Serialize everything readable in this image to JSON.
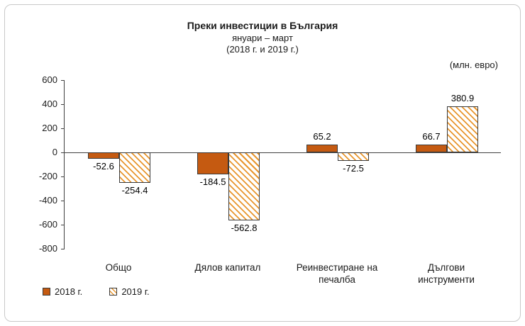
{
  "chart": {
    "title": "Преки  инвестиции в България",
    "subtitle1": "януари – март",
    "subtitle2": "(2018 г. и 2019 г.)",
    "unit": "(млн. евро)"
  },
  "chart_data": {
    "type": "bar",
    "title": "Преки инвестиции в България, януари – март (2018 г. и 2019 г.)",
    "ylabel": "млн. евро",
    "categories": [
      "Общо",
      "Дялов капитал",
      "Реинвестиране на печалба",
      "Дългови инструменти"
    ],
    "series": [
      {
        "name": "2018 г.",
        "style": "solid",
        "color": "#C55A11",
        "values": [
          -52.6,
          -184.5,
          65.2,
          66.7
        ]
      },
      {
        "name": "2019 г.",
        "style": "hatch",
        "color": "#E8962E",
        "values": [
          -254.4,
          -562.8,
          -72.5,
          380.9
        ]
      }
    ],
    "ylim": [
      -800,
      600
    ],
    "yticks": [
      600,
      400,
      200,
      0,
      -200,
      -400,
      -600,
      -800
    ],
    "grid": false,
    "legend_position": "bottom-left"
  }
}
